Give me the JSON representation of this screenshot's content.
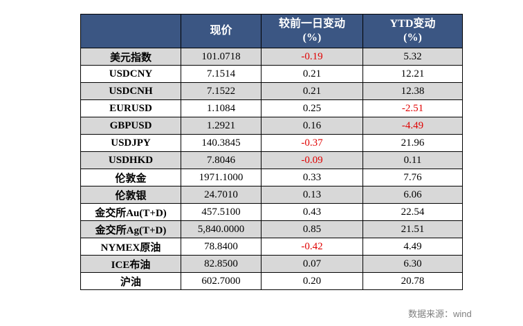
{
  "header": {
    "col1": "",
    "col2": "现价",
    "col3_line1": "较前一日变动",
    "col3_line2": "(%)",
    "col4_line1": "YTD变动",
    "col4_line2": "(%)"
  },
  "rows": [
    {
      "name": "美元指数",
      "price": "101.0718",
      "change": "-0.19",
      "ytd": "5.32"
    },
    {
      "name": "USDCNY",
      "price": "7.1514",
      "change": "0.21",
      "ytd": "12.21"
    },
    {
      "name": "USDCNH",
      "price": "7.1522",
      "change": "0.21",
      "ytd": "12.38"
    },
    {
      "name": "EURUSD",
      "price": "1.1084",
      "change": "0.25",
      "ytd": "-2.51"
    },
    {
      "name": "GBPUSD",
      "price": "1.2921",
      "change": "0.16",
      "ytd": "-4.49"
    },
    {
      "name": "USDJPY",
      "price": "140.3845",
      "change": "-0.37",
      "ytd": "21.96"
    },
    {
      "name": "USDHKD",
      "price": "7.8046",
      "change": "-0.09",
      "ytd": "0.11"
    },
    {
      "name": "伦敦金",
      "price": "1971.1000",
      "change": "0.33",
      "ytd": "7.76"
    },
    {
      "name": "伦敦银",
      "price": "24.7010",
      "change": "0.13",
      "ytd": "6.06"
    },
    {
      "name": "金交所Au(T+D)",
      "price": "457.5100",
      "change": "0.43",
      "ytd": "22.54"
    },
    {
      "name": "金交所Ag(T+D)",
      "price": "5,840.0000",
      "change": "0.85",
      "ytd": "21.51"
    },
    {
      "name": "NYMEX原油",
      "price": "78.8400",
      "change": "-0.42",
      "ytd": "4.49"
    },
    {
      "name": "ICE布油",
      "price": "82.8500",
      "change": "0.07",
      "ytd": "6.30"
    },
    {
      "name": "沪油",
      "price": "602.7000",
      "change": "0.20",
      "ytd": "20.78"
    }
  ],
  "colors": {
    "header_bg": "#3b5683",
    "negative": "#e00000",
    "row_alt": "#d8d8d8"
  },
  "source": "数据来源：wind"
}
